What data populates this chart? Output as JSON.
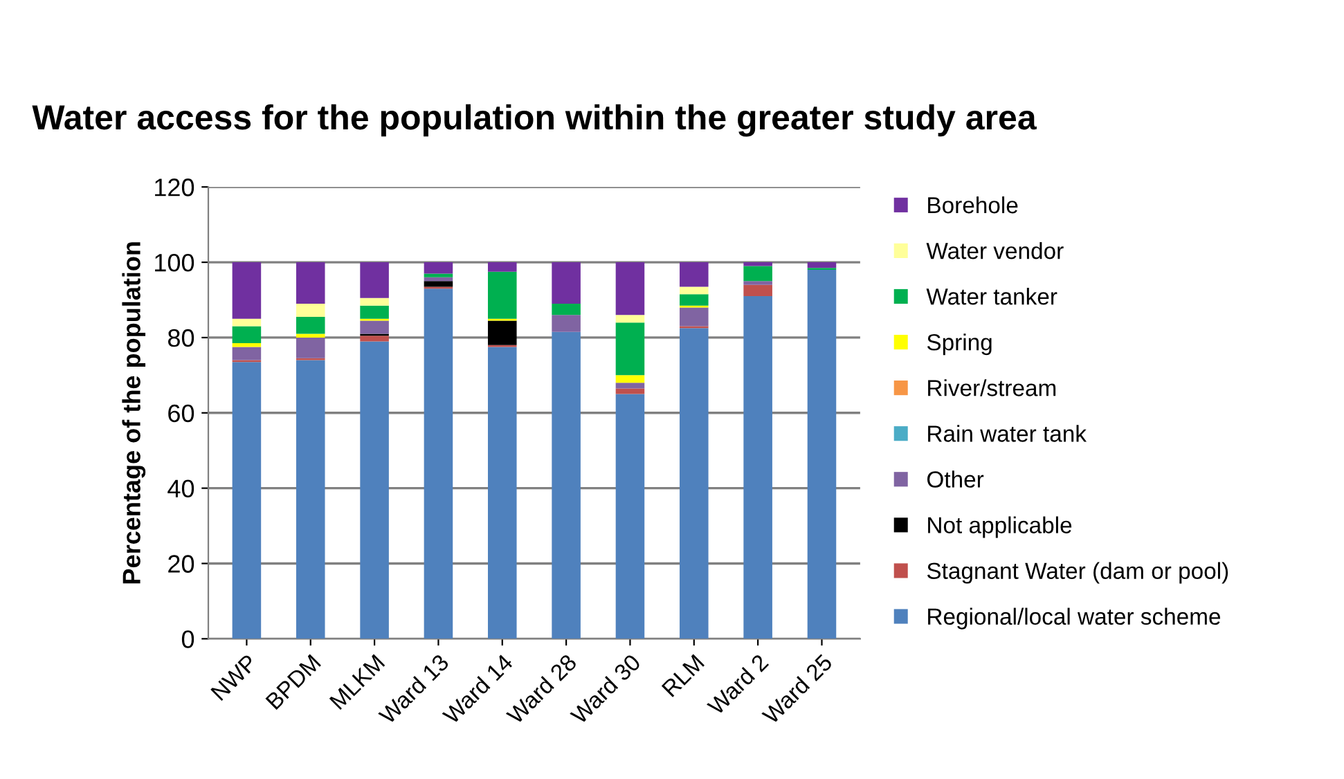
{
  "chart_data": {
    "type": "bar",
    "stacked": true,
    "title": "Water access for the population within the greater study area",
    "ylabel": "Percentage of the population",
    "categories": [
      "NWP",
      "BPDM",
      "MLKM",
      "Ward 13",
      "Ward 14",
      "Ward 28",
      "Ward 30",
      "RLM",
      "Ward 2",
      "Ward 25"
    ],
    "series": [
      {
        "name": "Regional/local water scheme",
        "color": "#4f81bd",
        "values": [
          73.5,
          74,
          79,
          93,
          77.5,
          81.5,
          65,
          82.5,
          91,
          98
        ]
      },
      {
        "name": "Stagnant Water (dam or pool)",
        "color": "#c0504d",
        "values": [
          0.5,
          0.5,
          1.5,
          0.5,
          0.5,
          0,
          1.5,
          0.5,
          3,
          0
        ]
      },
      {
        "name": "Not applicable",
        "color": "#000000",
        "values": [
          0,
          0,
          0.5,
          1.5,
          6.5,
          0,
          0,
          0,
          0,
          0
        ]
      },
      {
        "name": "Other",
        "color": "#8064a2",
        "values": [
          3.5,
          5.5,
          3.5,
          1,
          0,
          4.5,
          1.5,
          5,
          1,
          0
        ]
      },
      {
        "name": "Rain water tank",
        "color": "#4bacc6",
        "values": [
          0,
          0,
          0,
          0,
          0,
          0,
          0,
          0,
          0,
          0
        ]
      },
      {
        "name": "River/stream",
        "color": "#f79646",
        "values": [
          0,
          0,
          0,
          0,
          0,
          0,
          0,
          0,
          0,
          0
        ]
      },
      {
        "name": "Spring",
        "color": "#ffff00",
        "values": [
          1,
          1,
          0.5,
          0,
          0.5,
          0,
          2,
          0.5,
          0,
          0
        ]
      },
      {
        "name": "Water tanker",
        "color": "#00b050",
        "values": [
          4.5,
          4.5,
          3.5,
          1,
          12.5,
          3,
          14,
          3,
          4,
          0.5
        ]
      },
      {
        "name": "Water vendor",
        "color": "#ffff99",
        "values": [
          2,
          3.5,
          2,
          0,
          0,
          0,
          2,
          2,
          0,
          0
        ]
      },
      {
        "name": "Borehole",
        "color": "#7030a0",
        "values": [
          15,
          11,
          9.5,
          3,
          2.5,
          11,
          14,
          6.5,
          1,
          1.5
        ]
      }
    ],
    "ylim": [
      0,
      120
    ],
    "yticks": [
      0,
      20,
      40,
      60,
      80,
      100,
      120
    ],
    "grid": "y",
    "legend": "right"
  }
}
